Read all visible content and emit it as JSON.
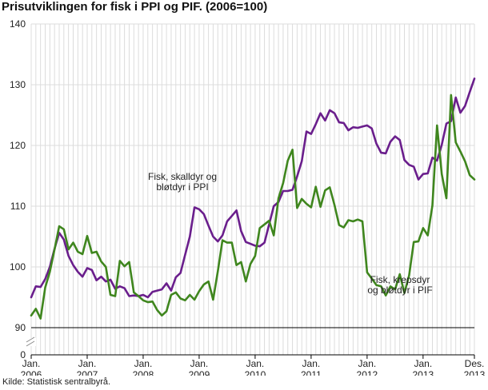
{
  "chart_data": {
    "type": "line",
    "title": "Prisutviklingen for fisk i PPI og PIF. (2006=100)",
    "source": "Kilde: Statistisk sentralbyrå.",
    "ylim": [
      0,
      140
    ],
    "axis_break": [
      0,
      90
    ],
    "y_ticks": [
      0,
      90,
      100,
      110,
      120,
      130,
      140
    ],
    "x_ticks": [
      {
        "i": 0,
        "line1": "Jan.",
        "line2": "2006"
      },
      {
        "i": 12,
        "line1": "Jan.",
        "line2": "2007"
      },
      {
        "i": 24,
        "line1": "Jan.",
        "line2": "2008"
      },
      {
        "i": 36,
        "line1": "Jan.",
        "line2": "2009"
      },
      {
        "i": 48,
        "line1": "Jan.",
        "line2": "2010"
      },
      {
        "i": 60,
        "line1": "Jan.",
        "line2": "2011"
      },
      {
        "i": 72,
        "line1": "Jan.",
        "line2": "2012"
      },
      {
        "i": 84,
        "line1": "Jan.",
        "line2": "2013"
      },
      {
        "i": 95,
        "line1": "Des.",
        "line2": "2013"
      }
    ],
    "grid": true,
    "x_count": 96,
    "series": [
      {
        "name": "Fisk, skalldyr og bløtdyr i PPI",
        "label_lines": [
          "Fisk, skalldyr og",
          "bløtdyr i PPI"
        ],
        "color": "#6a1e8c",
        "values": [
          95.0,
          96.8,
          96.7,
          98.0,
          100.0,
          103.0,
          105.6,
          104.5,
          101.8,
          100.3,
          99.2,
          98.4,
          99.8,
          99.5,
          97.8,
          98.4,
          97.6,
          97.9,
          96.4,
          96.8,
          96.5,
          95.2,
          95.3,
          95.2,
          95.4,
          95.0,
          95.9,
          96.1,
          96.3,
          97.3,
          96.1,
          98.3,
          99.0,
          102.0,
          105.0,
          109.8,
          109.5,
          108.7,
          106.8,
          105.0,
          104.2,
          105.2,
          107.5,
          108.4,
          109.3,
          105.9,
          104.1,
          103.8,
          103.5,
          103.4,
          104.0,
          107.0,
          110.0,
          110.7,
          112.5,
          112.5,
          112.7,
          114.9,
          117.4,
          122.3,
          121.9,
          123.5,
          125.3,
          124.1,
          125.8,
          125.3,
          123.8,
          123.7,
          122.5,
          123.0,
          122.9,
          123.1,
          123.3,
          122.8,
          120.3,
          118.8,
          118.7,
          120.6,
          121.5,
          120.9,
          117.6,
          116.8,
          116.5,
          114.4,
          115.3,
          115.4,
          118.0,
          117.5,
          120.1,
          123.6,
          124.0,
          127.9,
          125.4,
          126.5,
          128.8,
          131.0
        ]
      },
      {
        "name": "Fisk, krepsdyr og bløtdyr i PIF",
        "label_lines": [
          "Fisk, krepsdyr",
          "og bløtdyr i PIF"
        ],
        "color": "#3f861e",
        "values": [
          92.0,
          93.1,
          91.5,
          96.6,
          99.2,
          102.9,
          106.7,
          106.2,
          102.9,
          104.0,
          102.5,
          102.1,
          105.1,
          102.3,
          102.5,
          100.9,
          100.0,
          95.4,
          95.2,
          101.0,
          100.1,
          100.8,
          95.8,
          95.2,
          94.5,
          94.2,
          94.3,
          92.9,
          92.0,
          92.7,
          95.4,
          95.8,
          94.8,
          94.5,
          95.4,
          94.6,
          96.0,
          97.1,
          97.6,
          94.6,
          99.3,
          104.4,
          104.0,
          104.0,
          100.3,
          100.8,
          97.6,
          100.5,
          101.8,
          106.4,
          107.0,
          107.6,
          105.2,
          111.3,
          113.8,
          117.5,
          119.3,
          109.7,
          111.2,
          110.4,
          109.8,
          113.2,
          109.9,
          112.6,
          113.1,
          110.2,
          106.9,
          106.5,
          107.7,
          107.5,
          107.8,
          107.5,
          99.1,
          98.1,
          97.0,
          96.8,
          95.3,
          96.8,
          96.3,
          98.8,
          95.7,
          98.6,
          104.1,
          104.2,
          106.4,
          105.2,
          110.1,
          123.3,
          115.3,
          111.3,
          128.3,
          120.5,
          119.0,
          117.4,
          115.1,
          114.4
        ]
      }
    ]
  }
}
